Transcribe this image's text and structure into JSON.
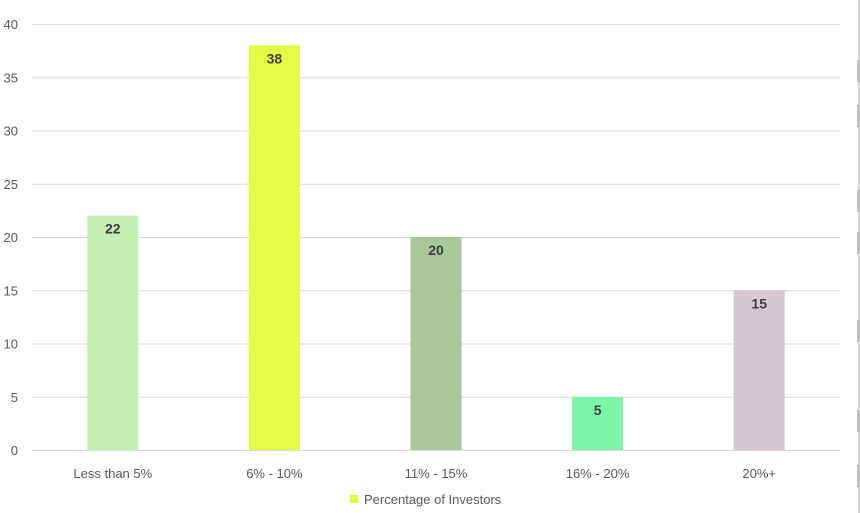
{
  "chart_data": {
    "type": "bar",
    "categories": [
      "Less than 5%",
      "6% - 10%",
      "11% - 15%",
      "16% - 20%",
      "20%+"
    ],
    "values": [
      22,
      38,
      20,
      5,
      15
    ],
    "bar_colors": [
      "#c6efb3",
      "#e2fc45",
      "#a9c89a",
      "#7ef5a6",
      "#d5c9d1"
    ],
    "data_labels": [
      "22",
      "38",
      "20",
      "5",
      "15"
    ],
    "ylim": [
      0,
      40
    ],
    "yticks": [
      "0",
      "5",
      "10",
      "15",
      "20",
      "25",
      "30",
      "35",
      "40"
    ],
    "ytick_values": [
      0,
      5,
      10,
      15,
      20,
      25,
      30,
      35,
      40
    ],
    "grid": true,
    "legend_position": "bottom",
    "series": [
      {
        "name": "Percentage of Investors",
        "legend_color": "#e2fc45",
        "values": [
          22,
          38,
          20,
          5,
          15
        ]
      }
    ],
    "legend": {
      "label": "Percentage of Investors",
      "color": "#e2fc45"
    },
    "title": "",
    "xlabel": "",
    "ylabel": ""
  }
}
